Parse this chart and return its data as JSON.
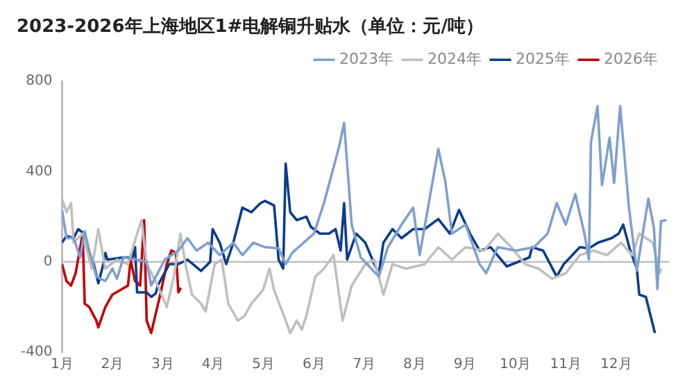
{
  "chart_data": {
    "type": "line",
    "title": "2023-2026年上海地区1#电解铜升贴水（单位：元/吨）",
    "xlim": [
      1,
      13.05
    ],
    "xticks": [
      {
        "value": 1,
        "label": "1月"
      },
      {
        "value": 2,
        "label": "2月"
      },
      {
        "value": 3,
        "label": "3月"
      },
      {
        "value": 4,
        "label": "4月"
      },
      {
        "value": 5,
        "label": "5月"
      },
      {
        "value": 6,
        "label": "6月"
      },
      {
        "value": 7,
        "label": "7月"
      },
      {
        "value": 8,
        "label": "8月"
      },
      {
        "value": 9,
        "label": "9月"
      },
      {
        "value": 10,
        "label": "10月"
      },
      {
        "value": 11,
        "label": "11月"
      },
      {
        "value": 12,
        "label": "12月"
      }
    ],
    "ylim": [
      -400,
      800
    ],
    "yticks": [
      -400,
      0,
      400,
      800
    ],
    "grid": false,
    "legend": "top",
    "marker": "none",
    "line_style": "solid",
    "ref_lines": [
      {
        "axis": "y",
        "value": 0,
        "color": "#bfbfbf"
      }
    ],
    "series": [
      {
        "name": "2023年",
        "color": "#7f9fcf",
        "x": [
          1.0,
          1.09,
          1.23,
          1.36,
          1.45,
          1.54,
          1.68,
          1.86,
          2.0,
          2.09,
          2.22,
          2.49,
          2.68,
          2.77,
          2.9,
          3.04,
          3.31,
          3.49,
          3.67,
          3.9,
          4.13,
          4.4,
          4.58,
          4.8,
          5.03,
          5.3,
          5.44,
          5.57,
          6.0,
          6.2,
          6.5,
          6.6,
          6.75,
          6.93,
          7.29,
          7.47,
          7.74,
          7.97,
          8.1,
          8.47,
          8.61,
          8.74,
          9.01,
          9.29,
          9.42,
          9.65,
          10.01,
          10.37,
          10.64,
          10.82,
          11.0,
          11.19,
          11.37,
          11.46,
          11.5,
          11.63,
          11.72,
          11.87,
          11.96,
          12.08,
          12.25,
          12.41,
          12.64,
          12.75,
          12.82,
          12.89,
          13.0
        ],
        "values": [
          230,
          105,
          105,
          20,
          135,
          50,
          -65,
          -85,
          -30,
          -75,
          20,
          10,
          0,
          -105,
          -50,
          10,
          50,
          105,
          50,
          85,
          30,
          85,
          30,
          85,
          65,
          60,
          -10,
          40,
          125,
          260,
          510,
          615,
          165,
          20,
          -65,
          65,
          165,
          240,
          30,
          500,
          355,
          125,
          165,
          -10,
          -50,
          65,
          50,
          65,
          125,
          260,
          165,
          300,
          125,
          10,
          530,
          690,
          340,
          550,
          350,
          690,
          250,
          -40,
          280,
          150,
          -120,
          180,
          185
        ]
      },
      {
        "name": "2024年",
        "color": "#bfbfbf",
        "x": [
          1.0,
          1.09,
          1.18,
          1.23,
          1.41,
          1.59,
          1.72,
          1.86,
          2.09,
          2.31,
          2.49,
          2.58,
          2.68,
          2.9,
          3.08,
          3.22,
          3.35,
          3.45,
          3.58,
          3.76,
          3.85,
          4.03,
          4.17,
          4.3,
          4.49,
          4.62,
          4.76,
          4.99,
          5.12,
          5.21,
          5.44,
          5.53,
          5.66,
          5.76,
          5.85,
          6.03,
          6.2,
          6.39,
          6.57,
          6.75,
          7.02,
          7.2,
          7.38,
          7.56,
          7.83,
          8.2,
          8.47,
          8.74,
          9.01,
          9.38,
          9.65,
          9.92,
          10.19,
          10.46,
          10.73,
          11.0,
          11.28,
          11.55,
          11.82,
          12.1,
          12.32,
          12.46,
          12.73,
          12.86,
          12.9
        ],
        "values": [
          280,
          220,
          260,
          85,
          125,
          -30,
          145,
          -30,
          10,
          -10,
          125,
          185,
          -10,
          -105,
          -200,
          -65,
          125,
          -10,
          -145,
          -185,
          -220,
          -10,
          10,
          -185,
          -260,
          -240,
          -185,
          -125,
          -30,
          -125,
          -260,
          -315,
          -260,
          -300,
          -240,
          -65,
          -30,
          30,
          -260,
          -105,
          -10,
          10,
          -145,
          -10,
          -30,
          -10,
          65,
          10,
          65,
          50,
          125,
          65,
          -10,
          -30,
          -75,
          -50,
          30,
          50,
          30,
          85,
          30,
          125,
          85,
          -50,
          -30
        ]
      },
      {
        "name": "2025年",
        "color": "#0b3c8c",
        "x": [
          1.0,
          1.09,
          1.23,
          1.32,
          1.41,
          1.5,
          1.63,
          1.72,
          1.82,
          1.86,
          1.9,
          2.22,
          2.4,
          2.45,
          2.49,
          2.68,
          2.77,
          2.86,
          2.9,
          3.13,
          3.31,
          3.49,
          3.76,
          3.94,
          3.99,
          4.13,
          4.26,
          4.4,
          4.58,
          4.76,
          4.94,
          5.03,
          5.21,
          5.3,
          5.39,
          5.44,
          5.53,
          5.66,
          5.85,
          5.94,
          6.12,
          6.3,
          6.43,
          6.53,
          6.6,
          6.66,
          6.84,
          7.02,
          7.2,
          7.29,
          7.38,
          7.56,
          7.74,
          7.97,
          8.2,
          8.47,
          8.7,
          8.88,
          9.1,
          9.29,
          9.51,
          9.83,
          10.28,
          10.33,
          10.55,
          10.82,
          10.96,
          11.28,
          11.46,
          11.64,
          11.91,
          12.05,
          12.14,
          12.28,
          12.41,
          12.46,
          12.59,
          12.77
        ],
        "values": [
          85,
          115,
          105,
          145,
          130,
          65,
          -10,
          -95,
          -10,
          40,
          10,
          20,
          20,
          65,
          -135,
          -135,
          -155,
          -140,
          -105,
          -10,
          -10,
          10,
          -40,
          0,
          145,
          85,
          -10,
          85,
          240,
          220,
          260,
          270,
          250,
          10,
          -30,
          435,
          220,
          185,
          200,
          155,
          125,
          125,
          145,
          50,
          260,
          10,
          125,
          85,
          -10,
          -50,
          85,
          145,
          105,
          145,
          145,
          190,
          125,
          230,
          125,
          50,
          65,
          -20,
          20,
          65,
          50,
          -65,
          -10,
          65,
          60,
          85,
          105,
          125,
          165,
          50,
          -30,
          -145,
          -155,
          -315
        ]
      },
      {
        "name": "2026年",
        "color": "#c00000",
        "x": [
          1.0,
          1.09,
          1.18,
          1.27,
          1.41,
          1.45,
          1.54,
          1.68,
          1.72,
          1.86,
          2.0,
          2.31,
          2.36,
          2.45,
          2.55,
          2.63,
          2.68,
          2.77,
          2.95,
          3.08,
          3.17,
          3.26,
          3.31,
          3.36
        ],
        "values": [
          -10,
          -85,
          -105,
          -50,
          125,
          -185,
          -200,
          -260,
          -290,
          -200,
          -145,
          -105,
          10,
          -85,
          -105,
          185,
          -260,
          -315,
          -145,
          -10,
          50,
          40,
          -135,
          -115
        ]
      }
    ]
  }
}
